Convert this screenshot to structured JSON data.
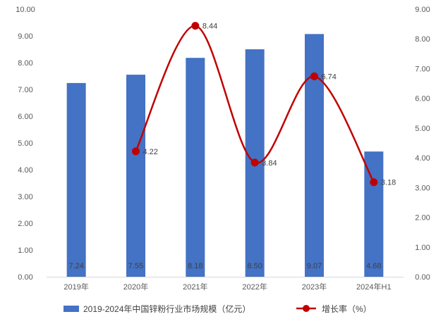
{
  "chart_data": {
    "type": "bar",
    "categories": [
      "2019年",
      "2020年",
      "2021年",
      "2022年",
      "2023年",
      "2024年H1"
    ],
    "series": [
      {
        "name": "2019-2024年中国锌粉行业市场规模（亿元）",
        "type": "bar",
        "axis": "left",
        "values": [
          7.24,
          7.55,
          8.18,
          8.5,
          9.07,
          4.68
        ],
        "labels": [
          "7.24",
          "7.55",
          "8.18",
          "8.50",
          "9.07",
          "4.68"
        ],
        "color": "#4472C4"
      },
      {
        "name": "增长率（%）",
        "type": "line",
        "axis": "right",
        "smooth": true,
        "values": [
          null,
          4.22,
          8.44,
          3.84,
          6.74,
          3.18
        ],
        "labels": [
          "",
          "4.22",
          "8.44",
          "3.84",
          "6.74",
          "3.18"
        ],
        "color": "#C00000"
      }
    ],
    "left_axis": {
      "min": 0,
      "max": 10,
      "step": 1,
      "ticks": [
        "0.00",
        "1.00",
        "2.00",
        "3.00",
        "4.00",
        "5.00",
        "6.00",
        "7.00",
        "8.00",
        "9.00",
        "10.00"
      ]
    },
    "right_axis": {
      "min": 0,
      "max": 9,
      "step": 1,
      "ticks": [
        "0.00",
        "1.00",
        "2.00",
        "3.00",
        "4.00",
        "5.00",
        "6.00",
        "7.00",
        "8.00",
        "9.00"
      ]
    },
    "grid": false,
    "legend": "bottom",
    "title": "",
    "xlabel": "",
    "ylabel": ""
  }
}
